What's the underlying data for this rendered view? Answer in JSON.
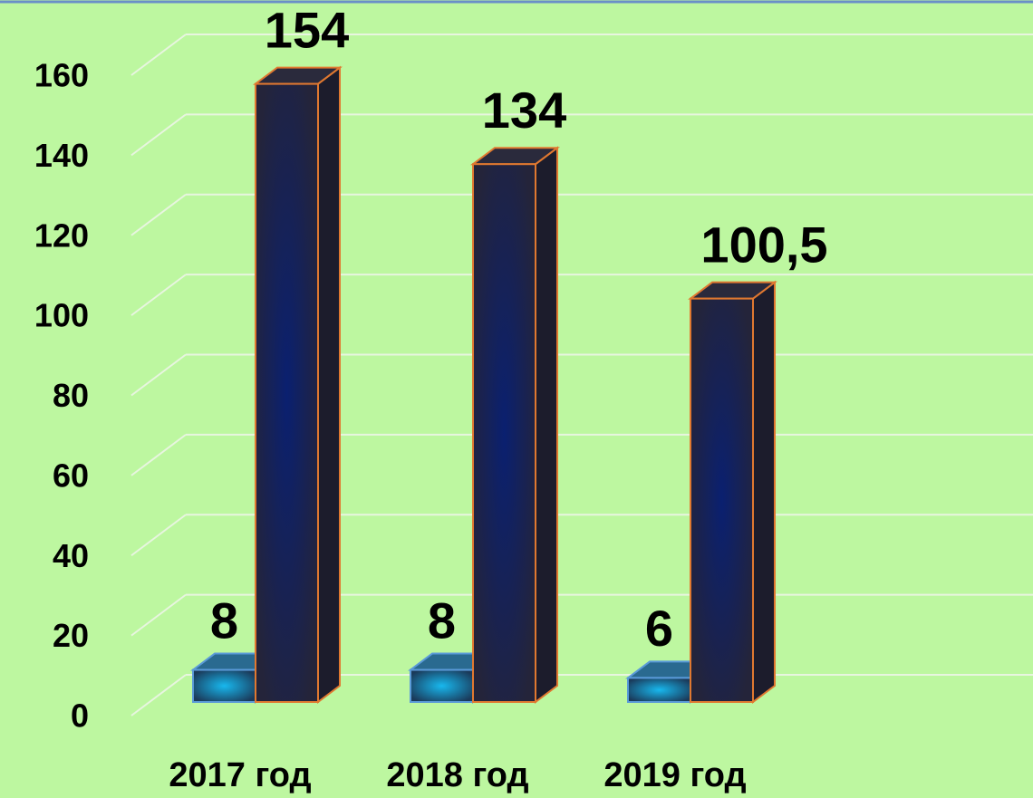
{
  "chart_data": {
    "type": "bar3d",
    "categories": [
      "2017 год",
      "2018 год",
      "2019 год"
    ],
    "series": [
      {
        "color": "#18b8ee",
        "values": [
          8,
          8,
          6
        ]
      },
      {
        "color": "#0a2070",
        "values": [
          154,
          134,
          100.5
        ],
        "value_labels": [
          "154",
          "134",
          "100,5"
        ]
      }
    ],
    "ylim": [
      0,
      160
    ],
    "yticks": [
      0,
      20,
      40,
      60,
      80,
      100,
      120,
      140,
      160
    ],
    "grid": true
  }
}
